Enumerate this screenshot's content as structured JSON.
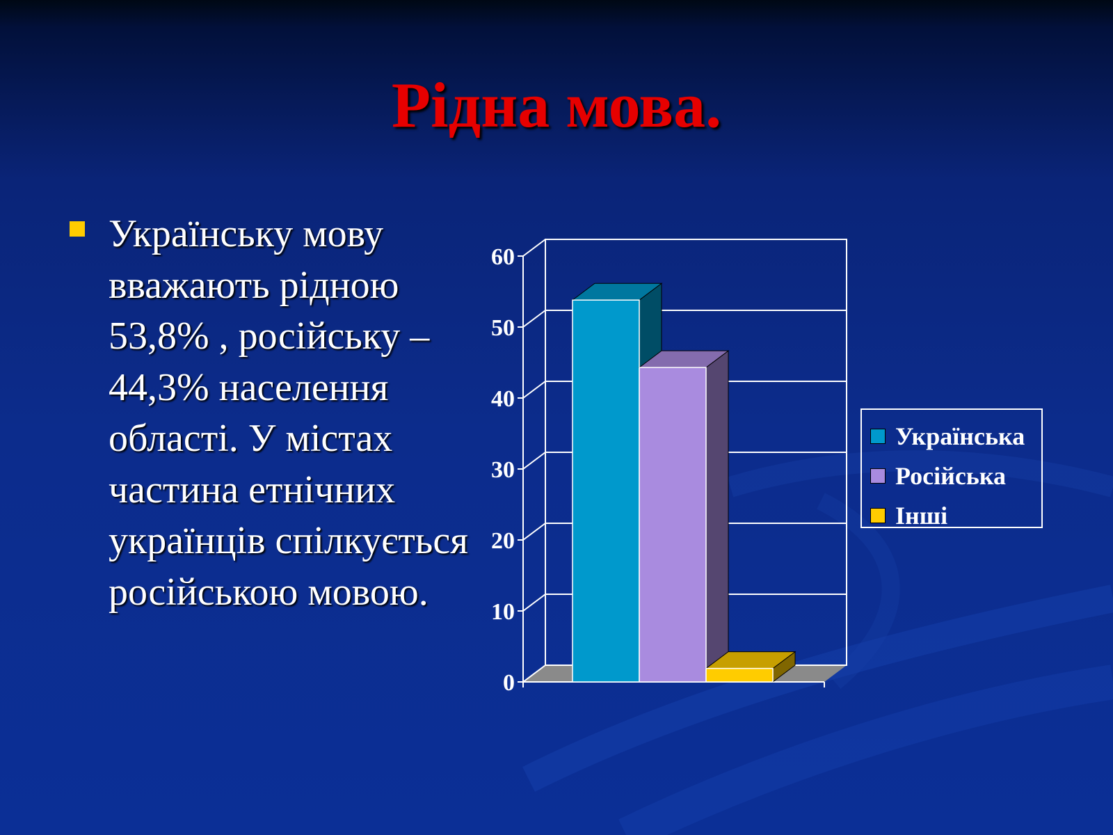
{
  "slide": {
    "title": "Рідна мова.",
    "bullet_text": "Українську мову вважають рідною 53,8% , російську – 44,3% населення області. У містах частина етнічних українців спілкується російською мовою.",
    "bullet_color": "#ffcc00",
    "title_color": "#e60000"
  },
  "chart_data": {
    "type": "bar",
    "categories": [
      ""
    ],
    "series": [
      {
        "name": "Українська",
        "values": [
          53.8
        ],
        "color": "#0099cc"
      },
      {
        "name": "Російська",
        "values": [
          44.3
        ],
        "color": "#a98bdf"
      },
      {
        "name": "Інші",
        "values": [
          1.9
        ],
        "color": "#ffcc00"
      }
    ],
    "ylim": [
      0,
      60
    ],
    "yticks": [
      0,
      10,
      20,
      30,
      40,
      50,
      60
    ],
    "grid": true,
    "legend": "right",
    "style": "3d-clustered-column"
  }
}
